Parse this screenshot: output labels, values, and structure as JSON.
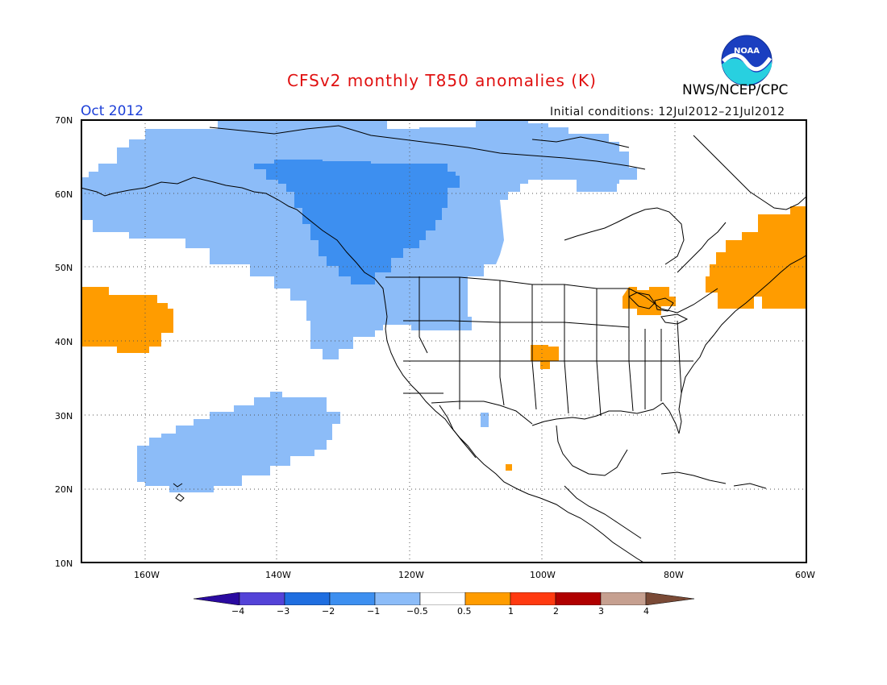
{
  "header": {
    "title": "CFSv2 monthly T850 anomalies (K)",
    "organization": "NWS/NCEP/CPC",
    "logo_text": "NOAA",
    "period": "Oct 2012",
    "initial_conditions": "Initial conditions: 12Jul2012–21Jul2012"
  },
  "map": {
    "lat_labels": [
      "70N",
      "60N",
      "50N",
      "40N",
      "30N",
      "20N",
      "10N"
    ],
    "lon_labels": [
      "160W",
      "140W",
      "120W",
      "100W",
      "80W",
      "60W"
    ],
    "extent": {
      "lon": [
        -172,
        -60
      ],
      "lat": [
        10,
        70
      ]
    },
    "grid": "dotted"
  },
  "colorbar": {
    "labels": [
      "−4",
      "−3",
      "−2",
      "−1",
      "−0.5",
      "0.5",
      "1",
      "2",
      "3",
      "4"
    ],
    "colors": [
      "#2a0aa0",
      "#5443d8",
      "#1f6ee0",
      "#3d8ff0",
      "#8cbcf8",
      "#ffffff",
      "#ff9c00",
      "#ff3a10",
      "#b00000",
      "#c6a090",
      "#7a4a36"
    ]
  },
  "legend_colors": {
    "anomaly_cold_moderate": "#8cbcf8",
    "anomaly_cold_strong": "#3d8ff0",
    "anomaly_warm": "#ff9c00"
  }
}
